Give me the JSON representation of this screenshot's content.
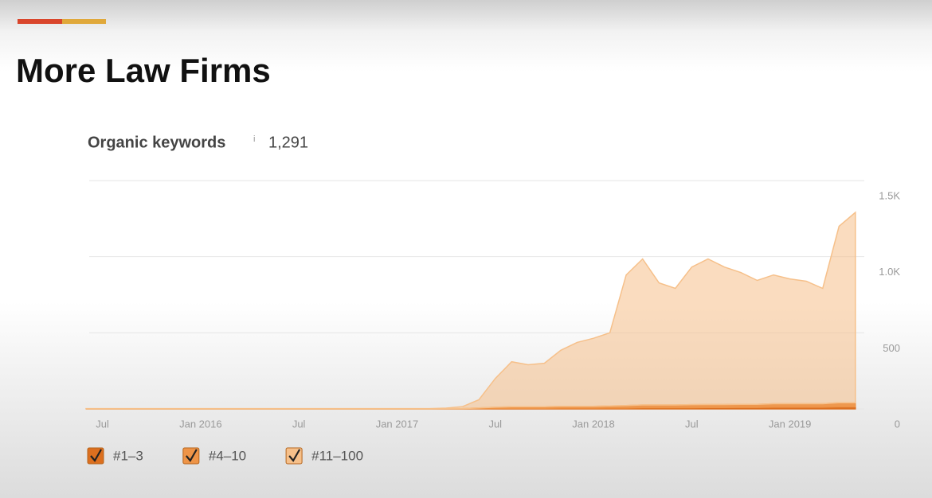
{
  "slide_title": "More Law Firms",
  "chart_data": {
    "type": "area",
    "stacked": true,
    "title": "Organic keywords",
    "info_icon": "i",
    "headline_value": "1,291",
    "x": [
      "2015-06",
      "2015-07",
      "2015-08",
      "2015-09",
      "2015-10",
      "2015-11",
      "2015-12",
      "2016-01",
      "2016-02",
      "2016-03",
      "2016-04",
      "2016-05",
      "2016-06",
      "2016-07",
      "2016-08",
      "2016-09",
      "2016-10",
      "2016-11",
      "2016-12",
      "2017-01",
      "2017-02",
      "2017-03",
      "2017-04",
      "2017-05",
      "2017-06",
      "2017-07",
      "2017-08",
      "2017-09",
      "2017-10",
      "2017-11",
      "2017-12",
      "2018-01",
      "2018-02",
      "2018-03",
      "2018-04",
      "2018-05",
      "2018-06",
      "2018-07",
      "2018-08",
      "2018-09",
      "2018-10",
      "2018-11",
      "2018-12",
      "2019-01",
      "2019-02",
      "2019-03",
      "2019-04",
      "2019-05"
    ],
    "xticks": [
      {
        "value": "2015-07",
        "label": "Jul"
      },
      {
        "value": "2016-01",
        "label": "Jan 2016"
      },
      {
        "value": "2016-07",
        "label": "Jul"
      },
      {
        "value": "2017-01",
        "label": "Jan 2017"
      },
      {
        "value": "2017-07",
        "label": "Jul"
      },
      {
        "value": "2018-01",
        "label": "Jan 2018"
      },
      {
        "value": "2018-07",
        "label": "Jul"
      },
      {
        "value": "2019-01",
        "label": "Jan 2019"
      }
    ],
    "ylim": [
      0,
      1500
    ],
    "yticks": [
      0,
      500,
      {
        "value": 1000,
        "label": "1.0K"
      },
      {
        "value": 1500,
        "label": "1.5K"
      }
    ],
    "grid": true,
    "y_axis_side": "right",
    "series": [
      {
        "name": "#1–3",
        "color": "#dc6f1f",
        "values": [
          0,
          0,
          0,
          0,
          0,
          0,
          0,
          0,
          0,
          0,
          0,
          0,
          0,
          0,
          0,
          0,
          0,
          0,
          0,
          0,
          0,
          0,
          0,
          0,
          2,
          3,
          4,
          4,
          4,
          5,
          5,
          5,
          6,
          6,
          8,
          8,
          8,
          8,
          9,
          9,
          10,
          10,
          12,
          12,
          12,
          12,
          14,
          14
        ]
      },
      {
        "name": "#4–10",
        "color": "#ee9447",
        "values": [
          0,
          0,
          0,
          0,
          0,
          0,
          0,
          0,
          0,
          0,
          0,
          0,
          0,
          0,
          0,
          0,
          0,
          0,
          0,
          0,
          0,
          0,
          1,
          2,
          5,
          8,
          10,
          10,
          10,
          12,
          12,
          12,
          14,
          16,
          18,
          18,
          18,
          20,
          20,
          20,
          20,
          20,
          22,
          22,
          22,
          22,
          26,
          26
        ]
      },
      {
        "name": "#11–100",
        "color": "#f6c08a",
        "values": [
          2,
          2,
          2,
          2,
          2,
          2,
          2,
          2,
          2,
          2,
          2,
          2,
          2,
          2,
          2,
          2,
          2,
          2,
          2,
          2,
          2,
          2,
          4,
          13,
          53,
          189,
          296,
          276,
          286,
          368,
          420,
          447,
          480,
          858,
          959,
          802,
          766,
          904,
          956,
          903,
          866,
          814,
          846,
          820,
          805,
          758,
          1160,
          1251
        ]
      }
    ]
  }
}
